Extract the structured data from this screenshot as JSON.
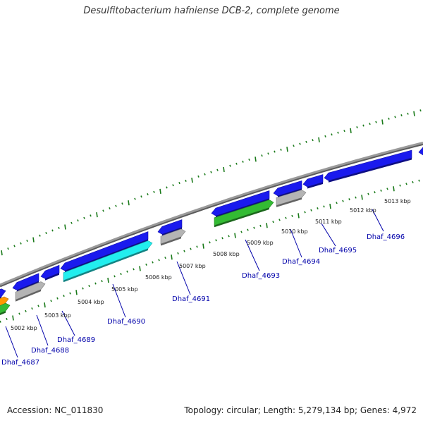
{
  "title": "Desulfitobacterium hafniense DCB-2, complete genome",
  "accession": "Accession: NC_011830",
  "summary": "Topology: circular; Length: 5,279,134 bp; Genes: 4,972",
  "colors": {
    "backbone": "#8c8c8c",
    "tick": "#1a7a1a",
    "cds_forward": "#1a1aee",
    "rna_cyan": "#22eeee",
    "gene_grey": "#b4b4b4",
    "gene_green": "#33bb33",
    "gene_orange": "#ff9900",
    "label": "#0000aa"
  },
  "kbp_labels": [
    {
      "text": "5002 kbp"
    },
    {
      "text": "5003 kbp"
    },
    {
      "text": "5004 kbp"
    },
    {
      "text": "5005 kbp"
    },
    {
      "text": "5006 kbp"
    },
    {
      "text": "5007 kbp"
    },
    {
      "text": "5008 kbp"
    },
    {
      "text": "5009 kbp"
    },
    {
      "text": "5010 kbp"
    },
    {
      "text": "5011 kbp"
    },
    {
      "text": "5012 kbp"
    },
    {
      "text": "5013 kbp"
    }
  ],
  "gene_labels": [
    {
      "text": "Dhaf_4687"
    },
    {
      "text": "Dhaf_4688"
    },
    {
      "text": "Dhaf_4689"
    },
    {
      "text": "Dhaf_4690"
    },
    {
      "text": "Dhaf_4691"
    },
    {
      "text": "Dhaf_4693"
    },
    {
      "text": "Dhaf_4694"
    },
    {
      "text": "Dhaf_4695"
    },
    {
      "text": "Dhaf_4696"
    }
  ]
}
